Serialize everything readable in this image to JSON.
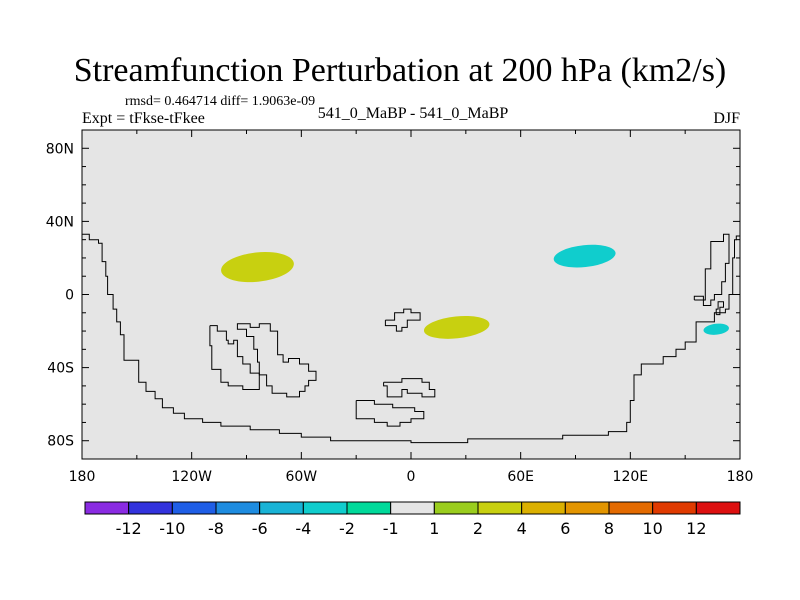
{
  "chart_data": {
    "type": "heatmap",
    "title": "Streamfunction Perturbation at 200 hPa (km2/s)",
    "stats_text": "rmsd= 0.464714  diff= 1.9063e-09",
    "left_label": "Expt = tFkse-tFkee",
    "center_label": "541_0_MaBP - 541_0_MaBP",
    "right_label": "DJF",
    "xlim": [
      180,
      540
    ],
    "ylim": [
      -90,
      90
    ],
    "x_ticks": [
      {
        "value": 180,
        "label": "180"
      },
      {
        "value": 240,
        "label": "120W"
      },
      {
        "value": 300,
        "label": "60W"
      },
      {
        "value": 360,
        "label": "0"
      },
      {
        "value": 420,
        "label": "60E"
      },
      {
        "value": 480,
        "label": "120E"
      },
      {
        "value": 540,
        "label": "180"
      }
    ],
    "y_ticks": [
      {
        "value": 80,
        "label": "80N"
      },
      {
        "value": 40,
        "label": "40N"
      },
      {
        "value": 0,
        "label": "0"
      },
      {
        "value": -40,
        "label": "40S"
      },
      {
        "value": -80,
        "label": "80S"
      }
    ],
    "anomalies": [
      {
        "name": "anomaly-positive-pacific",
        "level": 2,
        "center_lon": 276,
        "center_lat": 15,
        "lon_radius": 20,
        "lat_radius": 8
      },
      {
        "name": "anomaly-positive-africa",
        "level": 2,
        "center_lon": 385,
        "center_lat": -18,
        "lon_radius": 18,
        "lat_radius": 6
      },
      {
        "name": "anomaly-negative-asia",
        "level": -2,
        "center_lon": 455,
        "center_lat": 21,
        "lon_radius": 17,
        "lat_radius": 6
      },
      {
        "name": "anomaly-negative-pacific",
        "level": -2,
        "center_lon": 527,
        "center_lat": -19,
        "lon_radius": 7,
        "lat_radius": 3
      }
    ],
    "colorbar": {
      "colors": [
        "#8a2be2",
        "#3333dd",
        "#1f5ee6",
        "#1e8ce0",
        "#19b3d6",
        "#10cdcd",
        "#00d99a",
        "#e5e5e5",
        "#9acd1e",
        "#c8d010",
        "#dbb000",
        "#e39500",
        "#e36a00",
        "#e03a00",
        "#dd1010"
      ],
      "labels": [
        "-12",
        "-10",
        "-8",
        "-6",
        "-4",
        "-2",
        "-1",
        "1",
        "2",
        "4",
        "6",
        "8",
        "10",
        "12"
      ]
    },
    "background_color": "#e5e5e5",
    "coastline_color": "#000000",
    "coastlines": [
      [
        [
          180,
          33
        ],
        [
          184,
          33
        ],
        [
          184,
          30
        ],
        [
          189,
          30
        ],
        [
          189,
          28
        ],
        [
          191,
          28
        ],
        [
          191,
          18
        ],
        [
          193,
          18
        ],
        [
          193,
          10
        ],
        [
          194,
          10
        ],
        [
          194,
          0
        ],
        [
          197,
          0
        ],
        [
          197,
          -8
        ],
        [
          199,
          -8
        ],
        [
          199,
          -15
        ],
        [
          201,
          -15
        ],
        [
          201,
          -22
        ],
        [
          203,
          -22
        ],
        [
          203,
          -36
        ],
        [
          211,
          -36
        ],
        [
          211,
          -48
        ],
        [
          215,
          -48
        ],
        [
          215,
          -53
        ],
        [
          220,
          -53
        ],
        [
          220,
          -57
        ],
        [
          224,
          -57
        ],
        [
          224,
          -62
        ],
        [
          230,
          -62
        ],
        [
          230,
          -65
        ],
        [
          236,
          -65
        ],
        [
          236,
          -68
        ],
        [
          246,
          -68
        ],
        [
          246,
          -70
        ],
        [
          256,
          -70
        ],
        [
          256,
          -72
        ],
        [
          272,
          -72
        ],
        [
          272,
          -74
        ],
        [
          288,
          -74
        ],
        [
          288,
          -76
        ],
        [
          300,
          -76
        ],
        [
          300,
          -78
        ],
        [
          316,
          -78
        ],
        [
          316,
          -80
        ],
        [
          360,
          -80
        ],
        [
          360,
          -81
        ],
        [
          391,
          -81
        ],
        [
          391,
          -79
        ],
        [
          443,
          -79
        ],
        [
          443,
          -77
        ],
        [
          468,
          -77
        ],
        [
          468,
          -75
        ],
        [
          478,
          -75
        ],
        [
          478,
          -70
        ],
        [
          480,
          -70
        ],
        [
          480,
          -58
        ],
        [
          482,
          -58
        ],
        [
          482,
          -44
        ],
        [
          486,
          -44
        ],
        [
          486,
          -38
        ],
        [
          498,
          -38
        ],
        [
          498,
          -34
        ],
        [
          505,
          -34
        ],
        [
          505,
          -30
        ],
        [
          510,
          -30
        ],
        [
          510,
          -26
        ],
        [
          516,
          -26
        ],
        [
          516,
          -15
        ],
        [
          526,
          -15
        ],
        [
          526,
          -10
        ],
        [
          532,
          -10
        ],
        [
          532,
          -8
        ],
        [
          534,
          -8
        ],
        [
          534,
          0
        ],
        [
          536,
          0
        ],
        [
          536,
          20
        ],
        [
          537,
          20
        ],
        [
          537,
          30
        ],
        [
          538,
          30
        ],
        [
          538,
          32
        ],
        [
          540,
          32
        ]
      ],
      [
        [
          265,
          -17
        ],
        [
          265,
          -16
        ],
        [
          272,
          -16
        ],
        [
          272,
          -18
        ],
        [
          277,
          -18
        ],
        [
          277,
          -16
        ],
        [
          283,
          -16
        ],
        [
          283,
          -20
        ],
        [
          287,
          -20
        ],
        [
          287,
          -33
        ],
        [
          290,
          -33
        ],
        [
          290,
          -37
        ],
        [
          293,
          -37
        ],
        [
          293,
          -35
        ],
        [
          299,
          -35
        ],
        [
          299,
          -38
        ],
        [
          304,
          -38
        ],
        [
          304,
          -42
        ],
        [
          308,
          -42
        ],
        [
          308,
          -47
        ],
        [
          304,
          -47
        ],
        [
          304,
          -50
        ],
        [
          302,
          -50
        ],
        [
          302,
          -53
        ],
        [
          299,
          -53
        ],
        [
          299,
          -56
        ],
        [
          292,
          -56
        ],
        [
          292,
          -54
        ],
        [
          284,
          -54
        ],
        [
          284,
          -50
        ],
        [
          281,
          -50
        ],
        [
          281,
          -44
        ],
        [
          277,
          -44
        ],
        [
          277,
          -37
        ],
        [
          276,
          -37
        ],
        [
          276,
          -30
        ],
        [
          274,
          -30
        ],
        [
          274,
          -23
        ],
        [
          270,
          -23
        ],
        [
          270,
          -19
        ],
        [
          265,
          -19
        ],
        [
          265,
          -17
        ]
      ],
      [
        [
          250,
          -17
        ],
        [
          254,
          -17
        ],
        [
          254,
          -20
        ],
        [
          259,
          -20
        ],
        [
          259,
          -25
        ],
        [
          260,
          -25
        ],
        [
          260,
          -27
        ],
        [
          263,
          -27
        ],
        [
          263,
          -25
        ],
        [
          265,
          -25
        ],
        [
          265,
          -34
        ],
        [
          268,
          -34
        ],
        [
          268,
          -38
        ],
        [
          272,
          -38
        ],
        [
          272,
          -43
        ],
        [
          277,
          -43
        ],
        [
          277,
          -52
        ],
        [
          268,
          -52
        ],
        [
          268,
          -50
        ],
        [
          260,
          -50
        ],
        [
          260,
          -48
        ],
        [
          256,
          -48
        ],
        [
          256,
          -41
        ],
        [
          251,
          -41
        ],
        [
          251,
          -28
        ],
        [
          250,
          -28
        ],
        [
          250,
          -17
        ]
      ],
      [
        [
          345,
          -48
        ],
        [
          355,
          -48
        ],
        [
          355,
          -46
        ],
        [
          366,
          -46
        ],
        [
          366,
          -48
        ],
        [
          370,
          -48
        ],
        [
          370,
          -52
        ],
        [
          373,
          -52
        ],
        [
          373,
          -56
        ],
        [
          366,
          -56
        ],
        [
          366,
          -54
        ],
        [
          358,
          -54
        ],
        [
          358,
          -52
        ],
        [
          355,
          -52
        ],
        [
          355,
          -56
        ],
        [
          347,
          -56
        ],
        [
          347,
          -50
        ],
        [
          345,
          -50
        ],
        [
          345,
          -48
        ]
      ],
      [
        [
          330,
          -58
        ],
        [
          340,
          -58
        ],
        [
          340,
          -60
        ],
        [
          350,
          -60
        ],
        [
          350,
          -62
        ],
        [
          362,
          -62
        ],
        [
          362,
          -64
        ],
        [
          367,
          -64
        ],
        [
          367,
          -68
        ],
        [
          360,
          -68
        ],
        [
          360,
          -70
        ],
        [
          354,
          -70
        ],
        [
          354,
          -72
        ],
        [
          347,
          -72
        ],
        [
          347,
          -70
        ],
        [
          340,
          -70
        ],
        [
          340,
          -68
        ],
        [
          330,
          -68
        ],
        [
          330,
          -58
        ]
      ],
      [
        [
          346,
          -14
        ],
        [
          351,
          -14
        ],
        [
          351,
          -10
        ],
        [
          356,
          -10
        ],
        [
          356,
          -8
        ],
        [
          360,
          -8
        ],
        [
          360,
          -10
        ],
        [
          365,
          -10
        ],
        [
          365,
          -14
        ],
        [
          358,
          -14
        ],
        [
          358,
          -18
        ],
        [
          355,
          -18
        ],
        [
          355,
          -20
        ],
        [
          352,
          -20
        ],
        [
          352,
          -17
        ],
        [
          346,
          -17
        ],
        [
          346,
          -14
        ]
      ],
      [
        [
          515,
          -3
        ],
        [
          521,
          -3
        ],
        [
          521,
          14
        ],
        [
          524,
          14
        ],
        [
          524,
          29
        ],
        [
          531,
          29
        ],
        [
          531,
          33
        ],
        [
          534,
          33
        ],
        [
          534,
          17
        ],
        [
          532,
          17
        ],
        [
          532,
          7
        ],
        [
          530,
          7
        ],
        [
          530,
          0
        ],
        [
          526,
          0
        ],
        [
          526,
          -3
        ],
        [
          524,
          -3
        ],
        [
          524,
          -6
        ],
        [
          520,
          -6
        ],
        [
          520,
          -1
        ],
        [
          515,
          -1
        ],
        [
          515,
          -3
        ]
      ],
      [
        [
          527,
          -11
        ],
        [
          529,
          -11
        ],
        [
          529,
          -7
        ],
        [
          531,
          -7
        ],
        [
          531,
          -4
        ],
        [
          528,
          -4
        ],
        [
          528,
          -8
        ],
        [
          527,
          -8
        ],
        [
          527,
          -11
        ]
      ]
    ]
  }
}
